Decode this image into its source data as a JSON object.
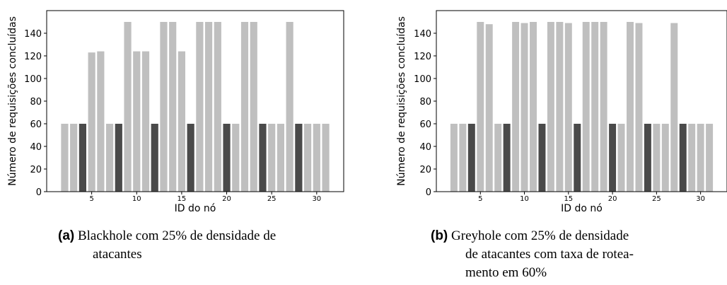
{
  "chart_data": [
    {
      "type": "bar",
      "xlabel": "ID do nó",
      "ylabel": "Número de requisições concluídas",
      "ylim": [
        0,
        160
      ],
      "xlim": [
        0,
        33
      ],
      "x_ticks": [
        5,
        10,
        15,
        20,
        25,
        30
      ],
      "y_ticks": [
        0,
        20,
        40,
        60,
        80,
        100,
        120,
        140
      ],
      "grid": false,
      "colors": {
        "normal": "#bfbfbf",
        "attacker": "#4a4a4a"
      },
      "x": [
        2,
        3,
        4,
        5,
        6,
        7,
        8,
        9,
        10,
        11,
        12,
        13,
        14,
        15,
        16,
        17,
        18,
        19,
        20,
        21,
        22,
        23,
        24,
        25,
        26,
        27,
        28,
        29,
        30,
        31
      ],
      "values": [
        60,
        60,
        60,
        123,
        124,
        60,
        60,
        150,
        124,
        124,
        60,
        150,
        150,
        124,
        60,
        150,
        150,
        150,
        60,
        60,
        150,
        150,
        60,
        60,
        60,
        150,
        60,
        60,
        60,
        60
      ],
      "attackers": [
        4,
        8,
        12,
        16,
        20,
        24,
        28
      ]
    },
    {
      "type": "bar",
      "xlabel": "ID do nó",
      "ylabel": "Número de requisições concluídas",
      "ylim": [
        0,
        160
      ],
      "xlim": [
        0,
        33
      ],
      "x_ticks": [
        5,
        10,
        15,
        20,
        25,
        30
      ],
      "y_ticks": [
        0,
        20,
        40,
        60,
        80,
        100,
        120,
        140
      ],
      "grid": false,
      "colors": {
        "normal": "#bfbfbf",
        "attacker": "#4a4a4a"
      },
      "x": [
        2,
        3,
        4,
        5,
        6,
        7,
        8,
        9,
        10,
        11,
        12,
        13,
        14,
        15,
        16,
        17,
        18,
        19,
        20,
        21,
        22,
        23,
        24,
        25,
        26,
        27,
        28,
        29,
        30,
        31
      ],
      "values": [
        60,
        60,
        60,
        150,
        148,
        60,
        60,
        150,
        149,
        150,
        60,
        150,
        150,
        149,
        60,
        150,
        150,
        150,
        60,
        60,
        150,
        149,
        60,
        60,
        60,
        149,
        60,
        60,
        60,
        60
      ],
      "attackers": [
        4,
        8,
        12,
        16,
        20,
        24,
        28
      ]
    }
  ],
  "captions": [
    {
      "tag": "(a)",
      "lines": [
        "Blackhole com 25% de densidade de",
        "atacantes"
      ]
    },
    {
      "tag": "(b)",
      "lines": [
        "Greyhole com 25% de densidade",
        "de atacantes com taxa de rotea-",
        "mento em 60%"
      ]
    }
  ]
}
